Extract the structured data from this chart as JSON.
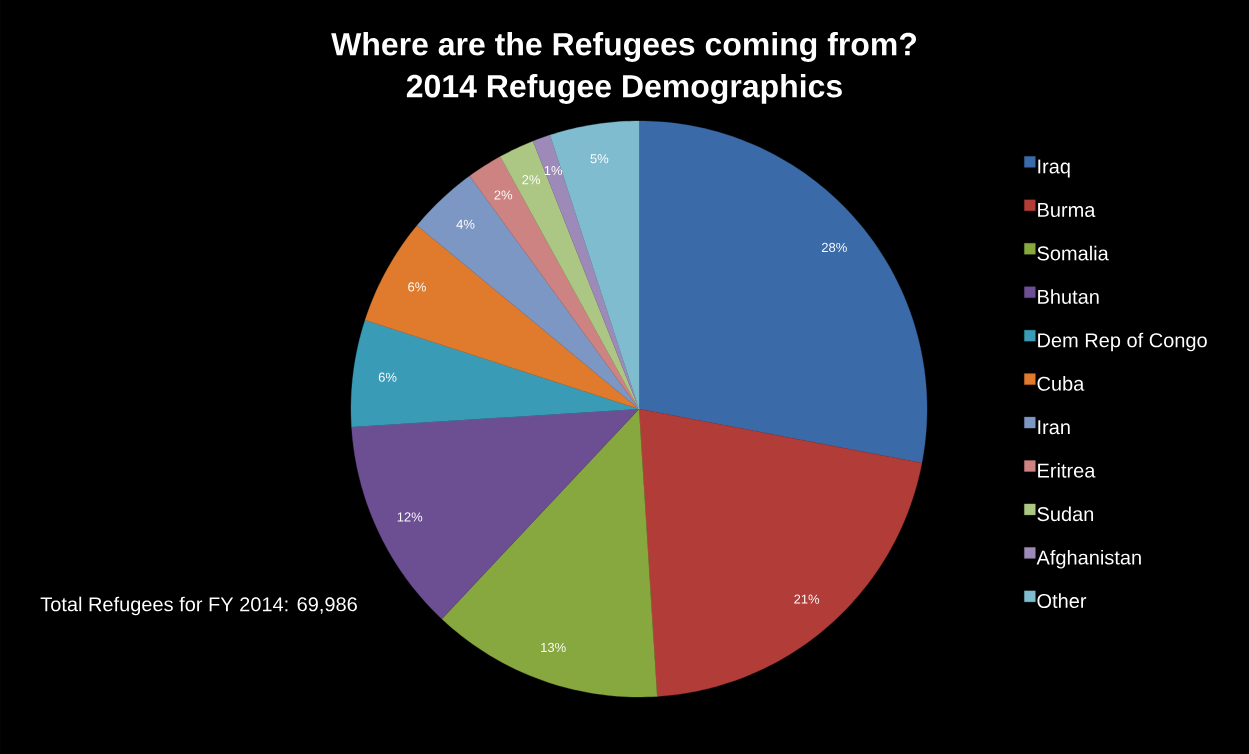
{
  "chart_data": {
    "type": "pie",
    "title": "Where are the Refugees coming from?",
    "subtitle": "2014 Refugee Demographics",
    "categories": [
      "Iraq",
      "Burma",
      "Somalia",
      "Bhutan",
      "Dem Rep of Congo",
      "Cuba",
      "Iran",
      "Eritrea",
      "Sudan",
      "Afghanistan",
      "Other"
    ],
    "values": [
      28,
      21,
      13,
      12,
      6,
      6,
      4,
      2,
      2,
      1,
      5
    ],
    "value_labels": [
      "28%",
      "21%",
      "13%",
      "12%",
      "6%",
      "6%",
      "4%",
      "2%",
      "2%",
      "1%",
      "5%"
    ],
    "colors": [
      "#3b6aa8",
      "#b13c38",
      "#87a83f",
      "#6c4f93",
      "#3a9bb6",
      "#e07b2d",
      "#7d97c4",
      "#cd8382",
      "#acc784",
      "#9d8ab9",
      "#7fbccf"
    ],
    "legend": "right",
    "annotations": [
      "Total Refugees for FY 2014: 69,986"
    ]
  }
}
